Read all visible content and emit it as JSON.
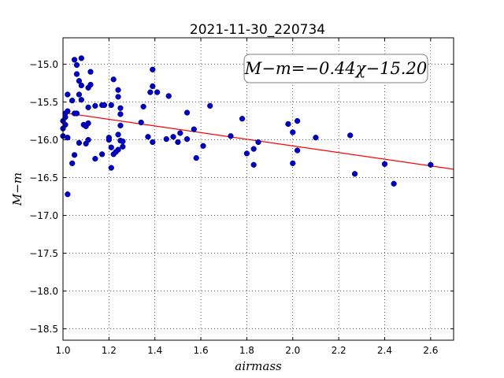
{
  "chart_data": {
    "type": "scatter",
    "title": "2021-11-30_220734",
    "xlabel": "airmass",
    "ylabel": "M−m",
    "xlim": [
      1.0,
      2.7
    ],
    "ylim": [
      -18.65,
      -14.65
    ],
    "y_inverted": true,
    "grid": true,
    "xticks": [
      1.0,
      1.2,
      1.4,
      1.6,
      1.8,
      2.0,
      2.2,
      2.4,
      2.6
    ],
    "xtick_labels": [
      "1.0",
      "1.2",
      "1.4",
      "1.6",
      "1.8",
      "2.0",
      "2.2",
      "2.4",
      "2.6"
    ],
    "yticks": [
      -15.0,
      -15.5,
      -16.0,
      -16.5,
      -17.0,
      -17.5,
      -18.0,
      -18.5
    ],
    "ytick_labels": [
      "−15.0",
      "−15.5",
      "−16.0",
      "−16.5",
      "−17.0",
      "−17.5",
      "−18.0",
      "−18.5"
    ],
    "annotation": "M−m=−0.44χ−15.20",
    "colors": {
      "points": "#0000bf",
      "fit": "#ff0000"
    },
    "fit": {
      "slope": -0.44,
      "intercept": -15.2
    },
    "points": [
      [
        1.0,
        -15.85
      ],
      [
        1.0,
        -15.75
      ],
      [
        1.0,
        -15.95
      ],
      [
        1.01,
        -15.7
      ],
      [
        1.01,
        -15.8
      ],
      [
        1.01,
        -15.65
      ],
      [
        1.02,
        -15.97
      ],
      [
        1.02,
        -16.72
      ],
      [
        1.02,
        -15.62
      ],
      [
        1.02,
        -15.4
      ],
      [
        1.04,
        -15.48
      ],
      [
        1.04,
        -16.31
      ],
      [
        1.05,
        -16.2
      ],
      [
        1.05,
        -15.65
      ],
      [
        1.05,
        -14.94
      ],
      [
        1.06,
        -15.01
      ],
      [
        1.06,
        -15.13
      ],
      [
        1.06,
        -15.65
      ],
      [
        1.07,
        -15.4
      ],
      [
        1.07,
        -15.22
      ],
      [
        1.07,
        -16.04
      ],
      [
        1.08,
        -14.92
      ],
      [
        1.08,
        -15.28
      ],
      [
        1.08,
        -15.47
      ],
      [
        1.09,
        -15.8
      ],
      [
        1.1,
        -15.82
      ],
      [
        1.1,
        -16.05
      ],
      [
        1.11,
        -15.57
      ],
      [
        1.11,
        -15.78
      ],
      [
        1.11,
        -16.0
      ],
      [
        1.11,
        -15.31
      ],
      [
        1.12,
        -15.27
      ],
      [
        1.12,
        -15.1
      ],
      [
        1.14,
        -15.55
      ],
      [
        1.14,
        -16.25
      ],
      [
        1.17,
        -15.54
      ],
      [
        1.17,
        -16.19
      ],
      [
        1.18,
        -15.54
      ],
      [
        1.2,
        -15.97
      ],
      [
        1.2,
        -16.0
      ],
      [
        1.21,
        -15.54
      ],
      [
        1.21,
        -16.1
      ],
      [
        1.21,
        -16.37
      ],
      [
        1.22,
        -15.2
      ],
      [
        1.22,
        -16.19
      ],
      [
        1.23,
        -16.16
      ],
      [
        1.24,
        -15.34
      ],
      [
        1.24,
        -15.93
      ],
      [
        1.24,
        -15.43
      ],
      [
        1.24,
        -16.13
      ],
      [
        1.25,
        -16.01
      ],
      [
        1.25,
        -15.58
      ],
      [
        1.25,
        -15.66
      ],
      [
        1.25,
        -15.81
      ],
      [
        1.26,
        -16.09
      ],
      [
        1.26,
        -16.02
      ],
      [
        1.34,
        -15.77
      ],
      [
        1.35,
        -15.56
      ],
      [
        1.37,
        -15.96
      ],
      [
        1.38,
        -15.37
      ],
      [
        1.39,
        -15.07
      ],
      [
        1.39,
        -15.29
      ],
      [
        1.39,
        -16.03
      ],
      [
        1.41,
        -15.37
      ],
      [
        1.45,
        -15.99
      ],
      [
        1.46,
        -15.42
      ],
      [
        1.48,
        -15.96
      ],
      [
        1.5,
        -16.03
      ],
      [
        1.51,
        -15.91
      ],
      [
        1.54,
        -15.64
      ],
      [
        1.54,
        -15.99
      ],
      [
        1.57,
        -15.86
      ],
      [
        1.58,
        -16.24
      ],
      [
        1.61,
        -16.08
      ],
      [
        1.64,
        -15.55
      ],
      [
        1.73,
        -15.95
      ],
      [
        1.78,
        -15.72
      ],
      [
        1.8,
        -16.18
      ],
      [
        1.83,
        -16.33
      ],
      [
        1.83,
        -16.12
      ],
      [
        1.85,
        -16.03
      ],
      [
        1.98,
        -15.79
      ],
      [
        2.0,
        -16.31
      ],
      [
        2.0,
        -15.9
      ],
      [
        2.02,
        -15.75
      ],
      [
        2.02,
        -16.14
      ],
      [
        2.1,
        -15.97
      ],
      [
        2.25,
        -15.94
      ],
      [
        2.27,
        -16.45
      ],
      [
        2.4,
        -16.32
      ],
      [
        2.44,
        -16.58
      ],
      [
        2.6,
        -16.33
      ]
    ]
  }
}
